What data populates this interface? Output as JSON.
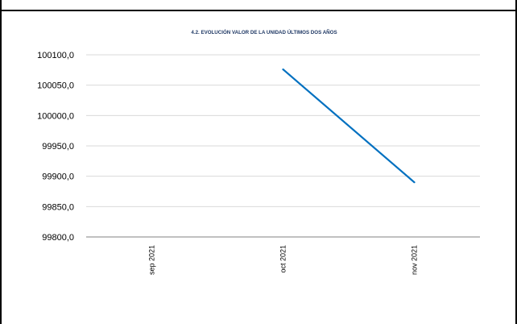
{
  "chart_data": {
    "type": "line",
    "title": "4.2. EVOLUCIÓN VALOR DE LA UNIDAD ÚLTIMOS DOS AÑOS",
    "xlabel": "",
    "ylabel": "",
    "categories": [
      "sep 2021",
      "oct 2021",
      "nov 2021"
    ],
    "series": [
      {
        "values": [
          null,
          100076.0,
          99890.0
        ],
        "color": "#0070c0"
      }
    ],
    "ylim": [
      99800,
      100100
    ],
    "yticks": [
      99800,
      99850,
      99900,
      99950,
      100000,
      100050,
      100100
    ],
    "ytick_labels": [
      "99800,0",
      "99850,0",
      "99900,0",
      "99950,0",
      "100000,0",
      "100050,0",
      "100100,0"
    ],
    "grid": true,
    "legend": "none"
  }
}
